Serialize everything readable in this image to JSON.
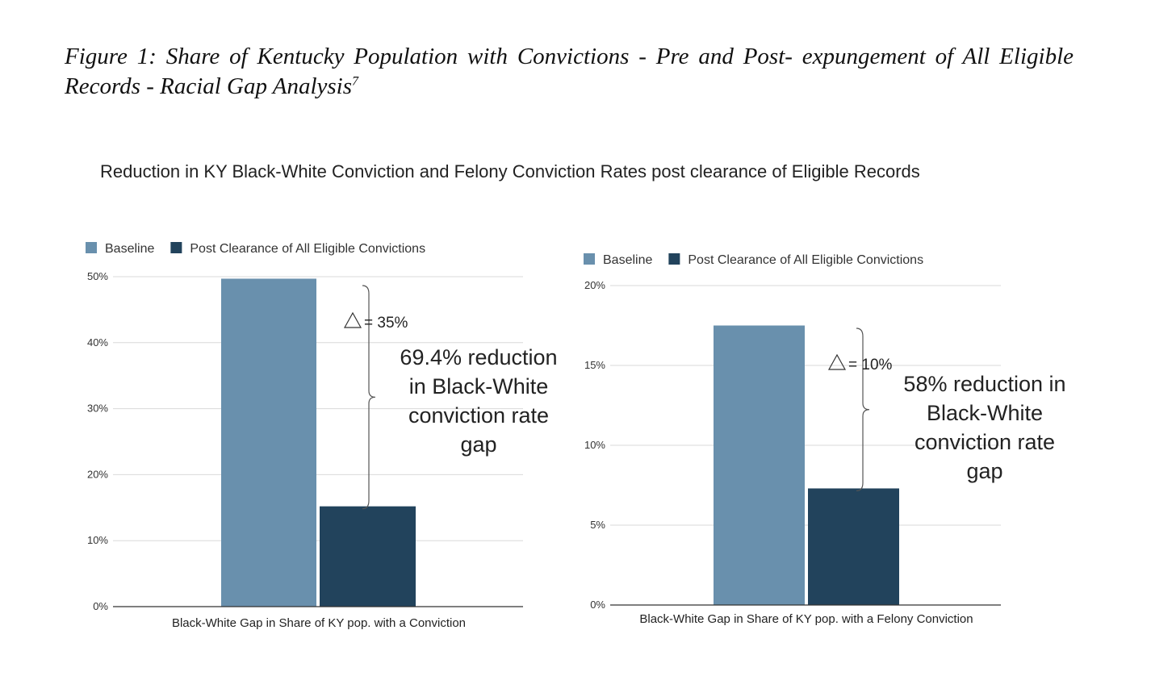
{
  "figure": {
    "caption": "Figure 1: Share of Kentucky Population with Convictions - Pre and Post- expungement  of All Eligible Records - Racial Gap Analysis",
    "footnote_marker": "7"
  },
  "chart_title": "Reduction in KY Black-White Conviction and Felony Conviction Rates post clearance of Eligible Records",
  "colors": {
    "baseline": "#6990ad",
    "post": "#22435c",
    "grid": "#d9d9d9",
    "axis": "#333333",
    "brace": "#555555"
  },
  "chart_data": [
    {
      "type": "bar",
      "categories": [
        "Black-White Gap in Share of KY pop. with a Conviction"
      ],
      "series": [
        {
          "name": "Baseline",
          "values": [
            49.7
          ]
        },
        {
          "name": "Post Clearance of All Eligible Convictions",
          "values": [
            15.2
          ]
        }
      ],
      "ylim": [
        0,
        50
      ],
      "yticks": [
        0,
        10,
        20,
        30,
        40,
        50
      ],
      "ytick_labels": [
        "0%",
        "10%",
        "20%",
        "30%",
        "40%",
        "50%"
      ],
      "grid": true,
      "legend": "top-left",
      "annotations": {
        "delta_symbol": "△",
        "delta_text": "= 35%",
        "callout": [
          "69.4% reduction",
          "in Black-White",
          "conviction rate",
          "gap"
        ]
      }
    },
    {
      "type": "bar",
      "categories": [
        "Black-White Gap in Share of KY pop. with a Felony Conviction"
      ],
      "series": [
        {
          "name": "Baseline",
          "values": [
            17.5
          ]
        },
        {
          "name": "Post Clearance of All Eligible Convictions",
          "values": [
            7.3
          ]
        }
      ],
      "ylim": [
        0,
        20
      ],
      "yticks": [
        0,
        5,
        10,
        15,
        20
      ],
      "ytick_labels": [
        "0%",
        "5%",
        "10%",
        "15%",
        "20%"
      ],
      "grid": true,
      "legend": "top-left",
      "annotations": {
        "delta_symbol": "△",
        "delta_text": "= 10%",
        "callout": [
          "58% reduction in",
          "Black-White",
          "conviction rate",
          "gap"
        ]
      }
    }
  ]
}
